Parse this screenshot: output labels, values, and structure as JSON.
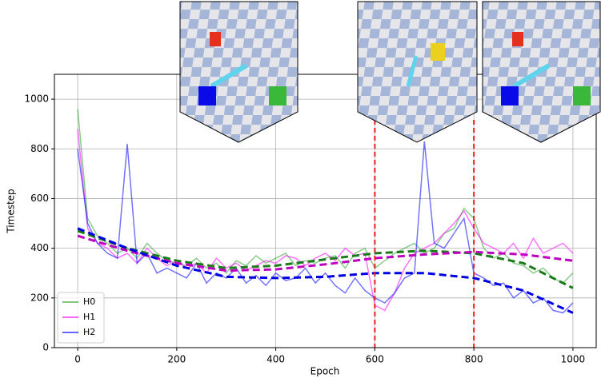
{
  "chart_data": {
    "type": "line",
    "xlabel": "Epoch",
    "ylabel": "Timestep",
    "xlim": [
      -47,
      1047
    ],
    "ylim": [
      0,
      1100
    ],
    "xticks": [
      0,
      200,
      400,
      600,
      800,
      1000
    ],
    "yticks": [
      0,
      200,
      400,
      600,
      800,
      1000
    ],
    "grid": true,
    "legend": "lower left",
    "x": [
      0,
      20,
      40,
      60,
      80,
      100,
      120,
      140,
      160,
      180,
      200,
      220,
      240,
      260,
      280,
      300,
      320,
      340,
      360,
      380,
      400,
      420,
      440,
      460,
      480,
      500,
      520,
      540,
      560,
      580,
      600,
      620,
      640,
      660,
      680,
      700,
      720,
      740,
      760,
      780,
      800,
      820,
      840,
      860,
      880,
      900,
      920,
      940,
      960,
      980,
      1000
    ],
    "series": [
      {
        "name": "H0",
        "color": "#2ca02c",
        "values": [
          960,
          520,
          450,
          420,
          380,
          400,
          360,
          420,
          380,
          350,
          340,
          330,
          360,
          320,
          340,
          300,
          350,
          330,
          370,
          340,
          360,
          380,
          330,
          350,
          340,
          360,
          370,
          320,
          380,
          400,
          320,
          350,
          380,
          400,
          420,
          380,
          400,
          460,
          480,
          560,
          520,
          400,
          360,
          380,
          340,
          330,
          300,
          320,
          280,
          260,
          300
        ]
      },
      {
        "name": "H1",
        "color": "#ff00ff",
        "values": [
          880,
          480,
          420,
          400,
          360,
          380,
          340,
          400,
          360,
          330,
          350,
          320,
          340,
          300,
          360,
          320,
          340,
          310,
          330,
          350,
          340,
          370,
          360,
          330,
          360,
          380,
          350,
          400,
          370,
          380,
          170,
          150,
          220,
          320,
          380,
          400,
          420,
          460,
          500,
          550,
          480,
          420,
          400,
          380,
          420,
          360,
          440,
          380,
          400,
          420,
          380
        ]
      },
      {
        "name": "H2",
        "color": "#0000ff",
        "values": [
          800,
          500,
          420,
          380,
          360,
          820,
          340,
          380,
          300,
          320,
          300,
          280,
          340,
          260,
          300,
          280,
          320,
          260,
          290,
          250,
          300,
          270,
          280,
          320,
          260,
          300,
          250,
          220,
          280,
          230,
          200,
          180,
          220,
          280,
          300,
          830,
          420,
          400,
          460,
          520,
          300,
          280,
          250,
          260,
          200,
          230,
          180,
          200,
          150,
          140,
          180
        ]
      }
    ],
    "trend_x": [
      0,
      100,
      200,
      300,
      400,
      500,
      600,
      700,
      800,
      900,
      1000
    ],
    "trend_lines": [
      {
        "color": "#1a7a1a",
        "values": [
          470,
          400,
          350,
          320,
          330,
          355,
          380,
          390,
          380,
          340,
          240
        ]
      },
      {
        "color": "#c000c0",
        "values": [
          450,
          390,
          340,
          310,
          315,
          335,
          360,
          375,
          385,
          375,
          350
        ]
      },
      {
        "color": "#0000e0",
        "values": [
          480,
          400,
          330,
          285,
          280,
          285,
          300,
          300,
          280,
          230,
          140
        ]
      }
    ],
    "vlines": [
      600,
      800
    ],
    "vline_color": "#e8201c"
  }
}
